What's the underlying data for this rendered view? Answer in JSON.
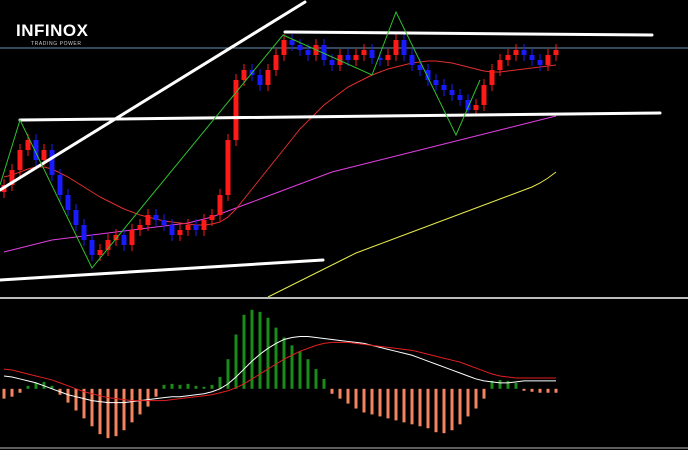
{
  "logo": {
    "name": "INFINOX",
    "tagline": "TRADING POWER"
  },
  "chart_data": [
    {
      "type": "candlestick",
      "ylim": [
        0,
        297
      ],
      "up_color": "#ff1a1a",
      "down_color": "#1a1aff",
      "open": [
        105,
        112,
        127,
        147,
        157,
        137,
        147,
        122,
        102,
        87,
        72,
        57,
        42,
        47,
        57,
        62,
        52,
        67,
        72,
        82,
        77,
        72,
        62,
        67,
        72,
        67,
        77,
        82,
        102,
        157,
        217,
        227,
        222,
        212,
        227,
        242,
        257,
        252,
        247,
        242,
        252,
        237,
        232,
        242,
        237,
        242,
        247,
        239,
        237,
        242,
        257,
        242,
        232,
        227,
        217,
        212,
        207,
        202,
        197,
        187,
        192,
        212,
        227,
        237,
        242,
        247,
        242,
        237,
        232,
        242
      ],
      "close": [
        112,
        127,
        147,
        157,
        137,
        147,
        122,
        102,
        87,
        72,
        57,
        42,
        47,
        57,
        62,
        52,
        67,
        72,
        82,
        77,
        72,
        62,
        67,
        72,
        67,
        77,
        82,
        102,
        157,
        217,
        227,
        222,
        212,
        227,
        242,
        257,
        252,
        247,
        242,
        252,
        237,
        232,
        242,
        237,
        242,
        247,
        239,
        237,
        242,
        257,
        242,
        232,
        227,
        217,
        212,
        207,
        202,
        197,
        187,
        192,
        212,
        227,
        237,
        242,
        247,
        242,
        237,
        232,
        242,
        247
      ],
      "high": [
        118,
        133,
        153,
        163,
        163,
        153,
        153,
        128,
        108,
        93,
        78,
        63,
        53,
        63,
        68,
        68,
        73,
        78,
        88,
        88,
        83,
        78,
        73,
        78,
        78,
        83,
        88,
        108,
        163,
        223,
        233,
        233,
        228,
        233,
        248,
        263,
        263,
        258,
        253,
        258,
        258,
        243,
        248,
        248,
        248,
        253,
        253,
        245,
        248,
        263,
        263,
        248,
        238,
        233,
        223,
        218,
        213,
        208,
        203,
        198,
        218,
        233,
        243,
        248,
        253,
        253,
        248,
        243,
        248,
        253
      ],
      "low": [
        99,
        106,
        121,
        141,
        131,
        131,
        116,
        96,
        81,
        66,
        51,
        36,
        36,
        41,
        51,
        46,
        46,
        61,
        66,
        71,
        66,
        56,
        56,
        61,
        61,
        61,
        71,
        76,
        96,
        151,
        211,
        216,
        206,
        206,
        221,
        236,
        246,
        241,
        236,
        236,
        231,
        226,
        226,
        231,
        231,
        236,
        233,
        231,
        231,
        236,
        236,
        226,
        221,
        211,
        206,
        201,
        196,
        191,
        181,
        181,
        186,
        206,
        221,
        231,
        236,
        236,
        231,
        226,
        226,
        236
      ],
      "lines": [
        {
          "color": "#e040e0",
          "values": [
            45,
            47,
            49,
            51,
            53,
            55,
            57,
            58,
            59,
            60,
            61,
            62,
            63,
            64,
            65,
            66,
            67,
            68,
            69,
            70,
            71,
            72,
            73,
            74,
            76,
            78,
            80,
            83,
            86,
            89,
            92,
            95,
            98,
            101,
            104,
            107,
            110,
            113,
            116,
            119,
            122,
            125,
            127,
            129,
            131,
            133,
            135,
            137,
            139,
            141,
            143,
            145,
            147,
            149,
            151,
            153,
            155,
            157,
            159,
            161,
            163,
            165,
            167,
            169,
            171,
            173,
            175,
            177,
            179,
            181
          ]
        },
        {
          "color": "#e8e850",
          "values": [
            null,
            null,
            null,
            null,
            null,
            null,
            null,
            null,
            null,
            null,
            null,
            null,
            null,
            null,
            null,
            null,
            null,
            null,
            null,
            null,
            null,
            null,
            null,
            null,
            null,
            null,
            null,
            null,
            null,
            null,
            null,
            null,
            null,
            0,
            4,
            8,
            12,
            16,
            20,
            24,
            28,
            32,
            36,
            40,
            44,
            47,
            50,
            53,
            56,
            59,
            62,
            65,
            68,
            71,
            74,
            77,
            80,
            83,
            86,
            89,
            92,
            95,
            98,
            101,
            104,
            107,
            110,
            114,
            119,
            125
          ]
        },
        {
          "color": "#e03030",
          "values": [
            120,
            122,
            125,
            128,
            130,
            130,
            128,
            124,
            120,
            115,
            110,
            105,
            100,
            96,
            92,
            88,
            85,
            82,
            80,
            78,
            76,
            75,
            74,
            73,
            72,
            72,
            73,
            75,
            80,
            88,
            98,
            108,
            118,
            128,
            138,
            148,
            158,
            168,
            176,
            184,
            192,
            198,
            204,
            210,
            214,
            218,
            222,
            225,
            228,
            230,
            232,
            234,
            235,
            236,
            236,
            235,
            234,
            232,
            230,
            228,
            226,
            225,
            225,
            226,
            227,
            228,
            229,
            230,
            231,
            232
          ]
        }
      ]
    },
    {
      "type": "macd",
      "ylim": [
        -60,
        90
      ],
      "positive_color": "#1a8c1a",
      "negative_color": "#f4845f",
      "values": [
        -10,
        -8,
        -4,
        3,
        6,
        7,
        3,
        -6,
        -14,
        -22,
        -30,
        -38,
        -46,
        -50,
        -48,
        -42,
        -34,
        -26,
        -18,
        -8,
        4,
        5,
        4,
        5,
        3,
        2,
        4,
        12,
        30,
        55,
        75,
        80,
        78,
        72,
        62,
        52,
        44,
        38,
        30,
        20,
        10,
        -5,
        -10,
        -15,
        -20,
        -24,
        -26,
        -28,
        -30,
        -32,
        -34,
        -36,
        -38,
        -40,
        -44,
        -45,
        -42,
        -36,
        -28,
        -20,
        -10,
        8,
        9,
        8,
        6,
        -2,
        -3,
        -4,
        -4,
        -4
      ],
      "lines": [
        {
          "color": "#ffffff",
          "values": [
            13,
            12,
            10,
            8,
            6,
            3,
            0,
            -3,
            -6,
            -8,
            -10,
            -12,
            -13,
            -14,
            -14,
            -14,
            -13,
            -12,
            -11,
            -10,
            -9,
            -8,
            -8,
            -7,
            -6,
            -5,
            -3,
            0,
            5,
            12,
            20,
            28,
            35,
            41,
            46,
            50,
            52,
            53,
            53,
            52,
            51,
            50,
            49,
            48,
            47,
            46,
            44,
            42,
            40,
            38,
            36,
            34,
            31,
            28,
            25,
            22,
            19,
            16,
            13,
            10,
            8,
            7,
            6,
            6,
            7,
            8,
            8,
            8,
            8,
            8
          ]
        },
        {
          "color": "#e02020",
          "values": [
            20,
            19,
            17,
            15,
            13,
            11,
            9,
            6,
            3,
            0,
            -3,
            -5,
            -7,
            -9,
            -10,
            -11,
            -12,
            -12,
            -12,
            -12,
            -12,
            -11,
            -10,
            -9,
            -8,
            -7,
            -6,
            -4,
            -2,
            1,
            5,
            10,
            15,
            20,
            25,
            30,
            34,
            38,
            41,
            44,
            46,
            47,
            47,
            47,
            46,
            45,
            44,
            43,
            42,
            41,
            40,
            39,
            37,
            35,
            33,
            31,
            29,
            27,
            24,
            21,
            18,
            15,
            13,
            12,
            11,
            11,
            11,
            11,
            11,
            11
          ]
        }
      ]
    }
  ]
}
